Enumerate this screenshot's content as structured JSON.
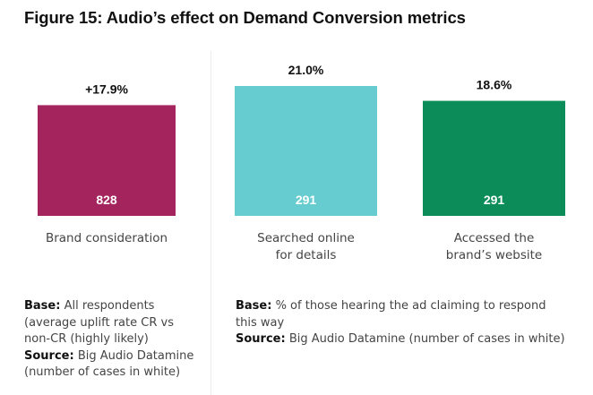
{
  "title": "Figure 15: Audio’s effect on Demand Conversion metrics",
  "chart_data": {
    "type": "bar",
    "title": "Figure 15: Audio’s effect on Demand Conversion metrics",
    "categories": [
      [
        "Brand consideration"
      ],
      [
        "Searched online",
        "for details"
      ],
      [
        "Accessed the",
        "brand’s website"
      ]
    ],
    "values": [
      17.9,
      21.0,
      18.6
    ],
    "value_labels": [
      "+17.9%",
      "21.0%",
      "18.6%"
    ],
    "case_counts": [
      "828",
      "291",
      "291"
    ],
    "colors": [
      "#A4245E",
      "#66CCCF",
      "#0C8C58"
    ],
    "ylabel": "",
    "xlabel": "",
    "grid": false,
    "groups": [
      {
        "name": "left",
        "members": [
          0
        ]
      },
      {
        "name": "right",
        "members": [
          1,
          2
        ]
      }
    ]
  },
  "footnotes": {
    "left": {
      "base_label": "Base:",
      "base_text": " All respondents (average uplift rate CR vs non-CR (highly likely)",
      "source_label": "Source:",
      "source_text": " Big Audio Datamine (number of cases in white)"
    },
    "right": {
      "base_label": "Base:",
      "base_text": " % of those hearing the ad claiming to respond this way",
      "source_label": "Source:",
      "source_text": " Big Audio Datamine (number of cases in white)"
    }
  }
}
